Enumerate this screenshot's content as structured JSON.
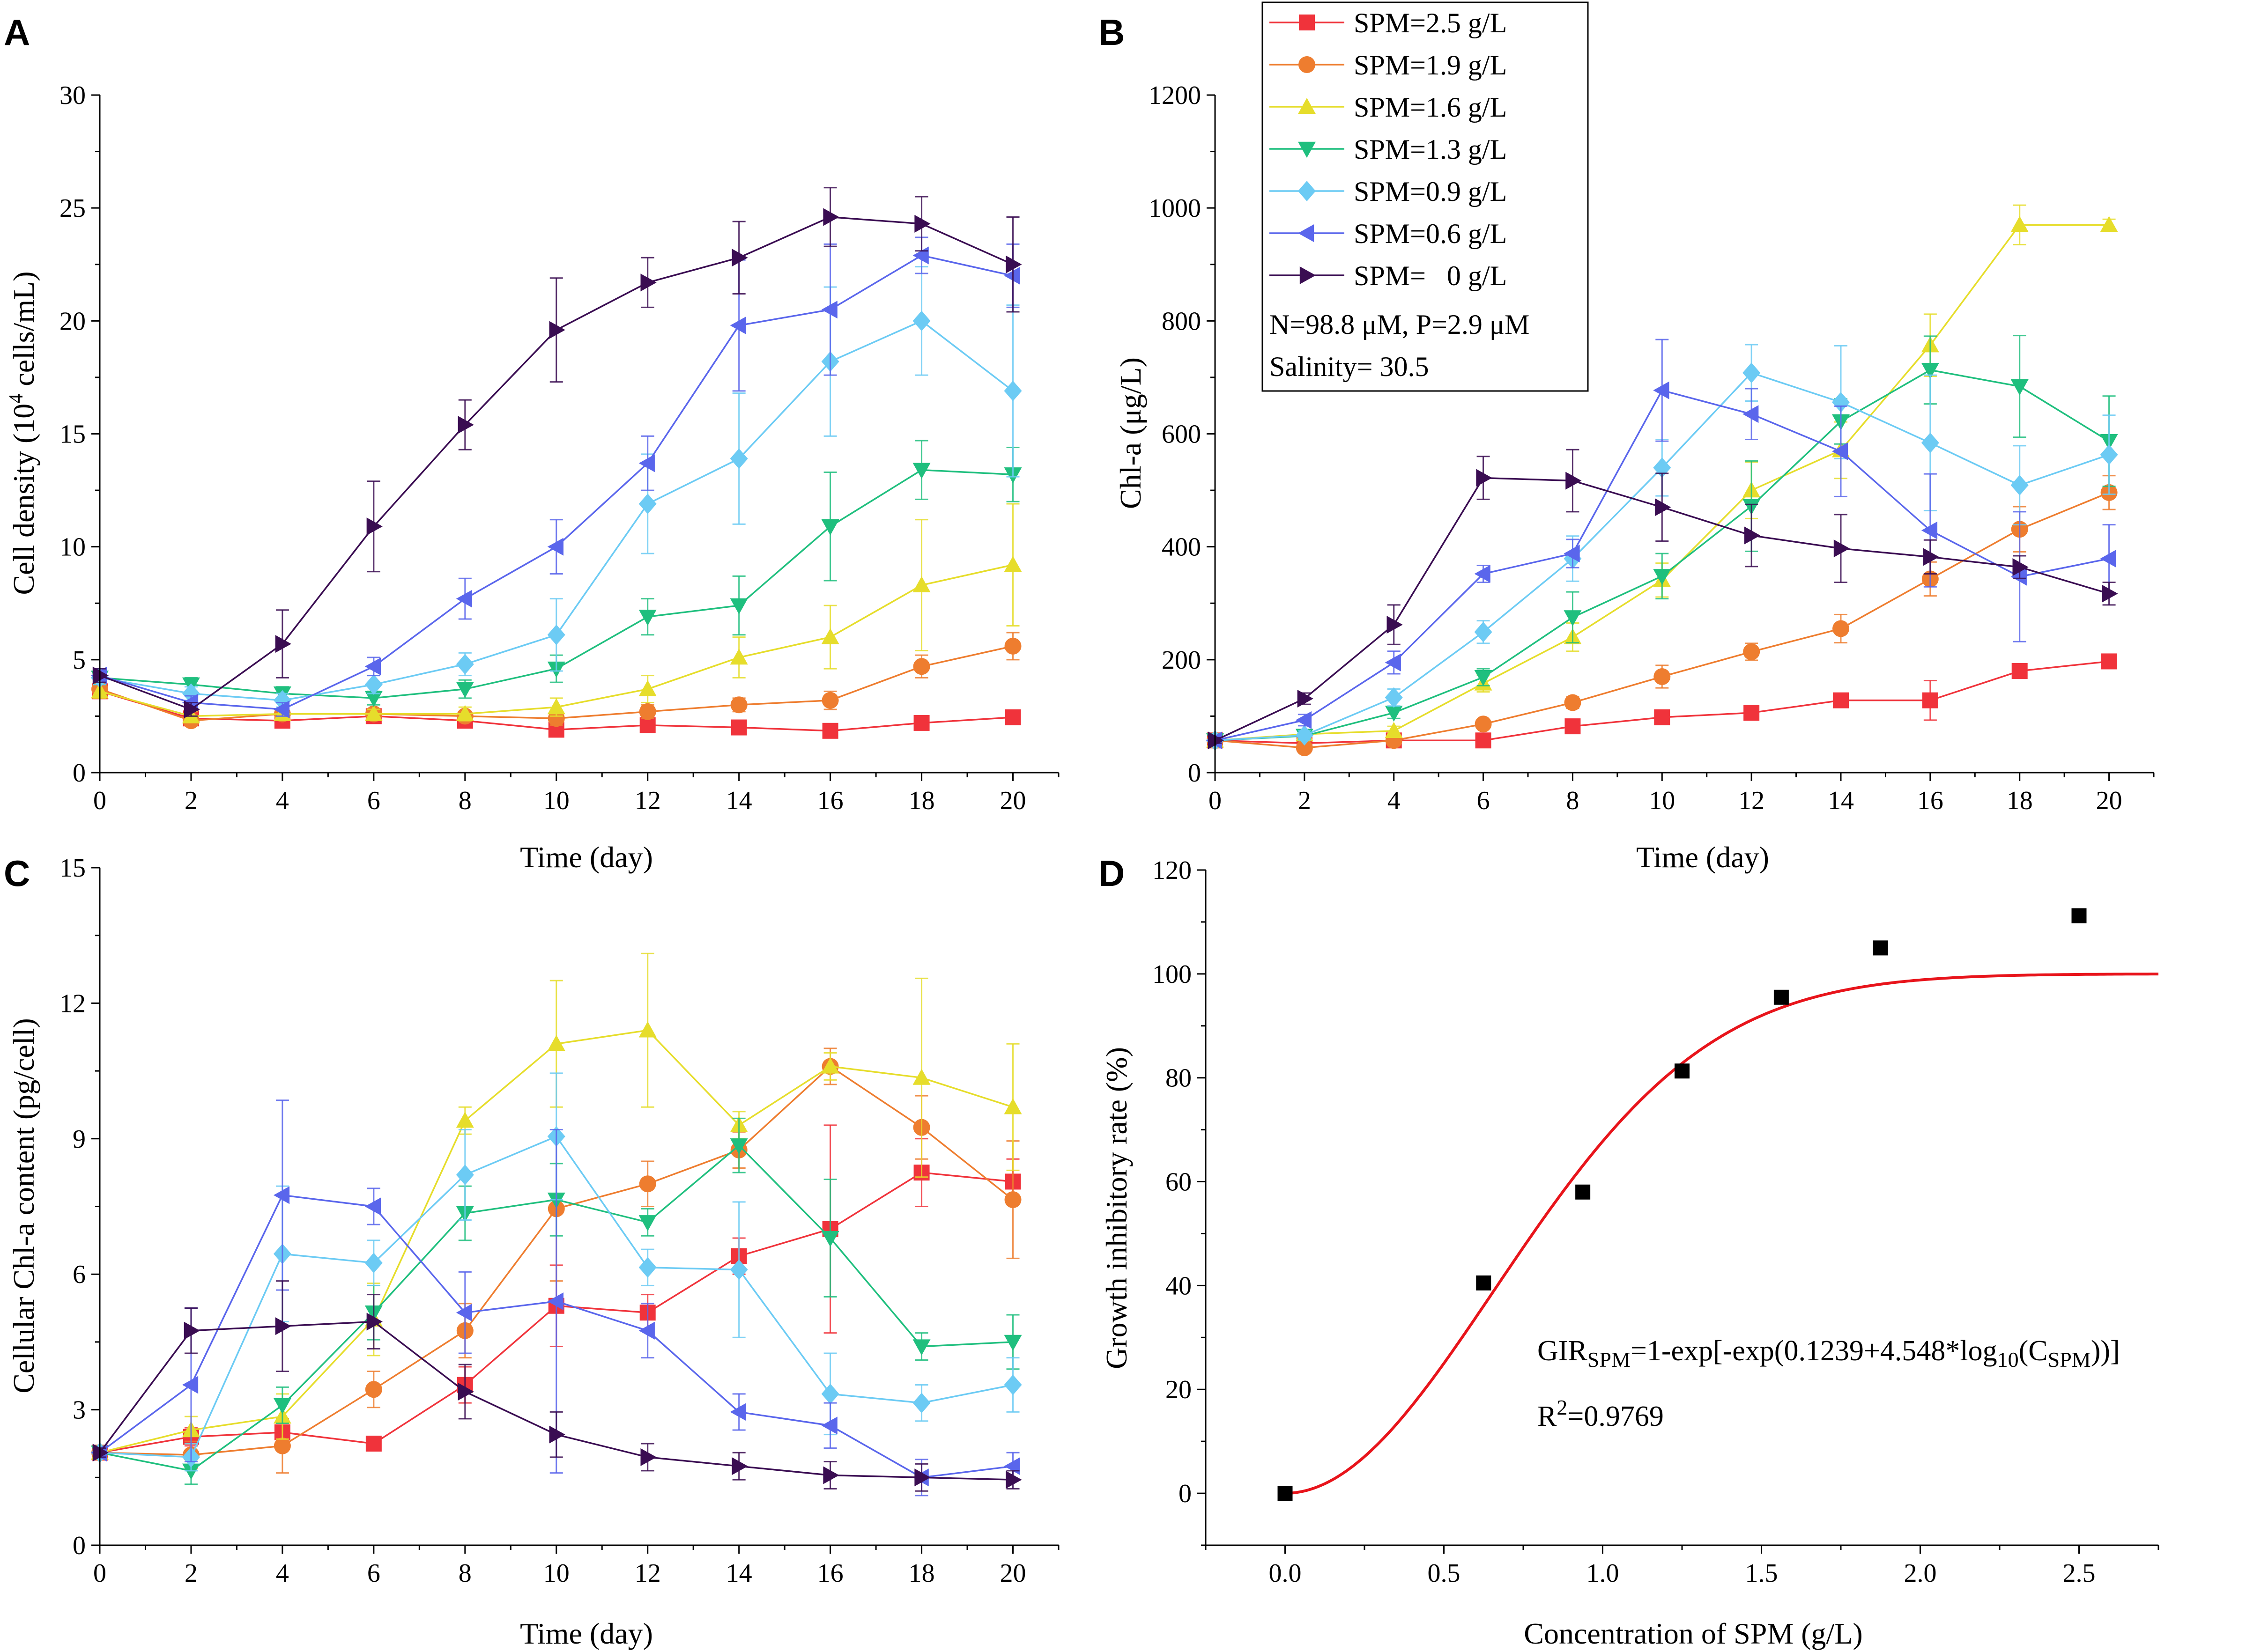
{
  "figure": {
    "panel_labels": [
      "A",
      "B",
      "C",
      "D"
    ],
    "legend": {
      "entries": [
        "SPM=2.5 g/L",
        "SPM=1.9 g/L",
        "SPM=1.6 g/L",
        "SPM=1.3 g/L",
        "SPM=0.9 g/L",
        "SPM=0.6 g/L",
        "SPM=   0 g/L"
      ],
      "note_lines": [
        "N=98.8 μM, P=2.9 μM",
        "Salinity= 30.5"
      ]
    }
  },
  "series_style": [
    {
      "name": "SPM=2.5 g/L",
      "color": "#f0333b",
      "marker": "square"
    },
    {
      "name": "SPM=1.9 g/L",
      "color": "#ee7d2f",
      "marker": "circle"
    },
    {
      "name": "SPM=1.6 g/L",
      "color": "#e6dd2b",
      "marker": "triangle-up"
    },
    {
      "name": "SPM=1.3 g/L",
      "color": "#1fbf7e",
      "marker": "triangle-down"
    },
    {
      "name": "SPM=0.9 g/L",
      "color": "#6ccbf4",
      "marker": "diamond"
    },
    {
      "name": "SPM=0.6 g/L",
      "color": "#5a66ec",
      "marker": "triangle-left"
    },
    {
      "name": "SPM=   0 g/L",
      "color": "#3a0d52",
      "marker": "triangle-right"
    }
  ],
  "chart_data": [
    {
      "panel": "A",
      "type": "line",
      "title": "",
      "xlabel": "Time (day)",
      "ylabel_parts": [
        "Cell density (10",
        "4",
        " cells/mL)"
      ],
      "ylabel": "Cell density (10^4 cells/mL)",
      "xlim": [
        0,
        21
      ],
      "ylim": [
        0,
        30
      ],
      "xticks": [
        0,
        2,
        4,
        6,
        8,
        10,
        12,
        14,
        16,
        18,
        20
      ],
      "yticks": [
        0,
        5,
        10,
        15,
        20,
        25,
        30
      ],
      "x": [
        0,
        2,
        4,
        6,
        8,
        10,
        12,
        14,
        16,
        18,
        20
      ],
      "series": [
        {
          "name": "SPM=2.5 g/L",
          "values": [
            3.6,
            2.4,
            2.3,
            2.5,
            2.3,
            1.9,
            2.1,
            2.0,
            1.85,
            2.2,
            2.45
          ],
          "errors": [
            0.2,
            0.2,
            0.2,
            0.2,
            0.2,
            0.2,
            0.2,
            0.2,
            0.2,
            0.2,
            0.2
          ]
        },
        {
          "name": "SPM=1.9 g/L",
          "values": [
            3.7,
            2.3,
            2.6,
            2.6,
            2.5,
            2.4,
            2.7,
            3.0,
            3.2,
            4.7,
            5.6
          ],
          "errors": [
            0.3,
            0.2,
            0.2,
            0.2,
            0.2,
            0.3,
            0.3,
            0.3,
            0.4,
            0.5,
            0.6
          ]
        },
        {
          "name": "SPM=1.6 g/L",
          "values": [
            3.6,
            2.5,
            2.6,
            2.6,
            2.6,
            2.9,
            3.7,
            5.1,
            6.0,
            8.3,
            9.2
          ],
          "errors": [
            0.3,
            0.2,
            0.2,
            0.2,
            0.3,
            0.4,
            0.6,
            0.9,
            1.4,
            2.9,
            2.7
          ]
        },
        {
          "name": "SPM=1.3 g/L",
          "values": [
            4.2,
            3.9,
            3.5,
            3.3,
            3.7,
            4.6,
            6.9,
            7.4,
            10.9,
            13.4,
            13.2
          ],
          "errors": [
            0.3,
            0.3,
            0.3,
            0.3,
            0.4,
            0.6,
            0.8,
            1.3,
            2.4,
            1.3,
            1.2
          ]
        },
        {
          "name": "SPM=0.9 g/L",
          "values": [
            4.2,
            3.5,
            3.2,
            3.9,
            4.8,
            6.1,
            11.9,
            13.9,
            18.2,
            20.0,
            16.9
          ],
          "errors": [
            0.3,
            0.3,
            0.3,
            0.4,
            0.5,
            1.6,
            2.2,
            2.9,
            3.3,
            2.4,
            3.8
          ]
        },
        {
          "name": "SPM=0.6 g/L",
          "values": [
            4.3,
            3.1,
            2.8,
            4.7,
            7.7,
            10.0,
            13.7,
            19.8,
            20.5,
            22.9,
            22.0
          ],
          "errors": [
            0.3,
            0.3,
            0.3,
            0.4,
            0.9,
            1.2,
            1.2,
            2.9,
            2.9,
            0.8,
            1.4
          ]
        },
        {
          "name": "SPM=   0 g/L",
          "values": [
            4.3,
            2.8,
            5.7,
            10.9,
            15.4,
            19.6,
            21.7,
            22.8,
            24.6,
            24.3,
            22.5
          ],
          "errors": [
            0.3,
            0.3,
            1.5,
            2.0,
            1.1,
            2.3,
            1.1,
            1.6,
            1.3,
            1.2,
            2.1
          ]
        }
      ]
    },
    {
      "panel": "B",
      "type": "line",
      "title": "",
      "xlabel": "Time (day)",
      "ylabel": "Chl-a (μg/L)",
      "xlim": [
        0,
        21
      ],
      "ylim": [
        0,
        1200
      ],
      "xticks": [
        0,
        2,
        4,
        6,
        8,
        10,
        12,
        14,
        16,
        18,
        20
      ],
      "yticks": [
        0,
        200,
        400,
        600,
        800,
        1000,
        1200
      ],
      "x": [
        0,
        2,
        4,
        6,
        8,
        10,
        12,
        14,
        16,
        18,
        20
      ],
      "series": [
        {
          "name": "SPM=2.5 g/L",
          "values": [
            57,
            52,
            57,
            57,
            82,
            98,
            106,
            128,
            128,
            180,
            197
          ],
          "errors": [
            5,
            5,
            6,
            5,
            8,
            10,
            10,
            12,
            35,
            10,
            8
          ]
        },
        {
          "name": "SPM=1.9 g/L",
          "values": [
            57,
            44,
            57,
            86,
            124,
            170,
            214,
            255,
            343,
            431,
            496
          ],
          "errors": [
            5,
            5,
            6,
            8,
            10,
            20,
            15,
            25,
            30,
            40,
            30
          ]
        },
        {
          "name": "SPM=1.6 g/L",
          "values": [
            57,
            68,
            74,
            158,
            240,
            341,
            500,
            571,
            757,
            970,
            970
          ],
          "errors": [
            5,
            6,
            8,
            15,
            25,
            30,
            50,
            50,
            55,
            35,
            10
          ]
        },
        {
          "name": "SPM=1.3 g/L",
          "values": [
            57,
            65,
            106,
            169,
            275,
            348,
            472,
            622,
            713,
            684,
            587
          ],
          "errors": [
            5,
            6,
            10,
            15,
            45,
            40,
            80,
            40,
            60,
            90,
            80
          ]
        },
        {
          "name": "SPM=0.9 g/L",
          "values": [
            57,
            66,
            133,
            249,
            379,
            540,
            708,
            656,
            584,
            509,
            563
          ],
          "errors": [
            5,
            8,
            15,
            20,
            40,
            50,
            50,
            100,
            120,
            70,
            70
          ]
        },
        {
          "name": "SPM=0.6 g/L",
          "values": [
            57,
            93,
            195,
            352,
            388,
            677,
            635,
            569,
            429,
            347,
            379
          ],
          "errors": [
            5,
            10,
            20,
            15,
            25,
            90,
            45,
            80,
            100,
            115,
            60
          ]
        },
        {
          "name": "SPM=   0 g/L",
          "values": [
            57,
            131,
            262,
            522,
            517,
            470,
            420,
            397,
            382,
            364,
            317
          ],
          "errors": [
            5,
            10,
            35,
            38,
            55,
            60,
            55,
            60,
            30,
            20,
            20
          ]
        }
      ]
    },
    {
      "panel": "C",
      "type": "line",
      "title": "",
      "xlabel": "Time (day)",
      "ylabel": "Cellular Chl-a content (pg/cell)",
      "xlim": [
        0,
        21
      ],
      "ylim": [
        0,
        15
      ],
      "xticks": [
        0,
        2,
        4,
        6,
        8,
        10,
        12,
        14,
        16,
        18,
        20
      ],
      "yticks": [
        0,
        3,
        6,
        9,
        12,
        15
      ],
      "x": [
        0,
        2,
        4,
        6,
        8,
        10,
        12,
        14,
        16,
        18,
        20
      ],
      "series": [
        {
          "name": "SPM=2.5 g/L",
          "values": [
            2.05,
            2.4,
            2.5,
            2.25,
            3.55,
            5.3,
            5.15,
            6.4,
            7.0,
            8.25,
            8.05
          ],
          "errors": [
            0.1,
            0.2,
            0.3,
            0.1,
            0.4,
            0.9,
            0.4,
            0.4,
            2.3,
            0.75,
            0.5
          ]
        },
        {
          "name": "SPM=1.9 g/L",
          "values": [
            2.05,
            2.0,
            2.2,
            3.45,
            4.75,
            7.45,
            8.0,
            8.75,
            10.6,
            9.25,
            7.65
          ],
          "errors": [
            0.1,
            0.3,
            0.6,
            0.4,
            0.6,
            1.6,
            0.5,
            0.4,
            0.4,
            0.7,
            1.3
          ]
        },
        {
          "name": "SPM=1.6 g/L",
          "values": [
            2.05,
            2.55,
            2.85,
            5.0,
            9.4,
            11.1,
            11.4,
            9.3,
            10.6,
            10.35,
            9.7
          ],
          "errors": [
            0.1,
            0.3,
            0.5,
            0.8,
            0.3,
            1.4,
            1.7,
            0.3,
            0.3,
            2.2,
            1.4
          ]
        },
        {
          "name": "SPM=1.3 g/L",
          "values": [
            2.05,
            1.65,
            3.1,
            5.15,
            7.35,
            7.65,
            7.15,
            8.85,
            6.8,
            4.4,
            4.5
          ],
          "errors": [
            0.1,
            0.3,
            0.4,
            0.6,
            0.6,
            0.8,
            0.3,
            0.6,
            1.3,
            0.3,
            0.6
          ]
        },
        {
          "name": "SPM=0.9 g/L",
          "values": [
            2.05,
            1.95,
            6.45,
            6.25,
            8.2,
            9.05,
            6.15,
            6.1,
            3.35,
            3.15,
            3.55
          ],
          "errors": [
            0.1,
            0.3,
            1.5,
            0.5,
            1.0,
            1.4,
            0.4,
            1.5,
            0.9,
            0.4,
            0.6
          ]
        },
        {
          "name": "SPM=0.6 g/L",
          "values": [
            2.05,
            3.55,
            7.75,
            7.5,
            5.15,
            5.4,
            4.75,
            2.95,
            2.65,
            1.5,
            1.75
          ],
          "errors": [
            0.1,
            1.7,
            2.1,
            0.4,
            0.9,
            3.8,
            0.6,
            0.4,
            0.5,
            0.4,
            0.3
          ]
        },
        {
          "name": "SPM=   0 g/L",
          "values": [
            2.05,
            4.75,
            4.85,
            4.95,
            3.4,
            2.45,
            1.95,
            1.75,
            1.55,
            1.5,
            1.45
          ],
          "errors": [
            0.1,
            0.5,
            1.0,
            0.6,
            0.6,
            0.5,
            0.3,
            0.3,
            0.3,
            0.3,
            0.2
          ]
        }
      ]
    },
    {
      "panel": "D",
      "type": "scatter",
      "title": "",
      "xlabel": "Concentration of SPM (g/L)",
      "ylabel": "Growth inhibitory rate (%)",
      "xlim": [
        -0.25,
        2.75
      ],
      "ylim": [
        -10,
        120
      ],
      "xticks": [
        0.0,
        0.5,
        1.0,
        1.5,
        2.0,
        2.5
      ],
      "xtick_labels": [
        "0.0",
        "0.5",
        "1.0",
        "1.5",
        "2.0",
        "2.5"
      ],
      "yticks": [
        0,
        20,
        40,
        60,
        80,
        100,
        120
      ],
      "points": {
        "x": [
          0.0,
          0.625,
          0.9375,
          1.25,
          1.5625,
          1.875,
          2.5
        ],
        "y": [
          0.0,
          40.5,
          58.0,
          81.3,
          95.5,
          105.0,
          111.2
        ]
      },
      "fit": {
        "color": "#e8141b",
        "x_from": 0.0,
        "x_to": 2.75,
        "a": 0.1239,
        "b": 4.548
      },
      "equation": {
        "parts": [
          "GIR",
          "SPM",
          "=1-exp[-exp(0.1239+4.548*log",
          "10",
          "(C",
          "SPM",
          "))]"
        ],
        "r2_parts": [
          "R",
          "2",
          "=0.9769"
        ]
      }
    }
  ]
}
